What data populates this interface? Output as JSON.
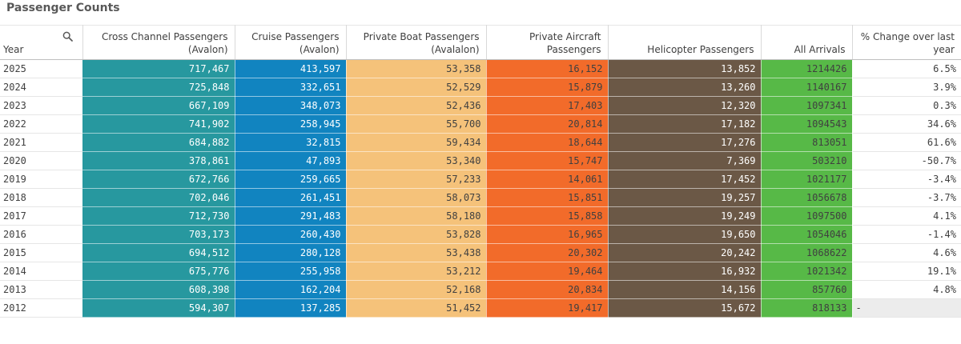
{
  "title": "Passenger Counts",
  "colors": {
    "cross": "#27989f",
    "cruise": "#1184c0",
    "boat": "#f5c27a",
    "air": "#f26b2a",
    "heli": "#6b5846",
    "all": "#57b947"
  },
  "headers": {
    "year": "Year",
    "search_icon": "search-icon",
    "cross_l1": "Cross Channel Passengers",
    "cross_l2": "(Avalon)",
    "cruise_l1": "Cruise Passengers",
    "cruise_l2": "(Avalon)",
    "boat_l1": "Private Boat Passengers",
    "boat_l2": "(Avalalon)",
    "air_l1": "Private Aircraft",
    "air_l2": "Passengers",
    "heli": "Helicopter Passengers",
    "all": "All Arrivals",
    "pct_l1": "% Change over last",
    "pct_l2": "year"
  },
  "rows": [
    {
      "year": "2025",
      "cross": "717,467",
      "cruise": "413,597",
      "boat": "53,358",
      "air": "16,152",
      "heli": "13,852",
      "all": "1214426",
      "pct": "6.5%"
    },
    {
      "year": "2024",
      "cross": "725,848",
      "cruise": "332,651",
      "boat": "52,529",
      "air": "15,879",
      "heli": "13,260",
      "all": "1140167",
      "pct": "3.9%"
    },
    {
      "year": "2023",
      "cross": "667,109",
      "cruise": "348,073",
      "boat": "52,436",
      "air": "17,403",
      "heli": "12,320",
      "all": "1097341",
      "pct": "0.3%"
    },
    {
      "year": "2022",
      "cross": "741,902",
      "cruise": "258,945",
      "boat": "55,700",
      "air": "20,814",
      "heli": "17,182",
      "all": "1094543",
      "pct": "34.6%"
    },
    {
      "year": "2021",
      "cross": "684,882",
      "cruise": "32,815",
      "boat": "59,434",
      "air": "18,644",
      "heli": "17,276",
      "all": "813051",
      "pct": "61.6%"
    },
    {
      "year": "2020",
      "cross": "378,861",
      "cruise": "47,893",
      "boat": "53,340",
      "air": "15,747",
      "heli": "7,369",
      "all": "503210",
      "pct": "-50.7%"
    },
    {
      "year": "2019",
      "cross": "672,766",
      "cruise": "259,665",
      "boat": "57,233",
      "air": "14,061",
      "heli": "17,452",
      "all": "1021177",
      "pct": "-3.4%"
    },
    {
      "year": "2018",
      "cross": "702,046",
      "cruise": "261,451",
      "boat": "58,073",
      "air": "15,851",
      "heli": "19,257",
      "all": "1056678",
      "pct": "-3.7%"
    },
    {
      "year": "2017",
      "cross": "712,730",
      "cruise": "291,483",
      "boat": "58,180",
      "air": "15,858",
      "heli": "19,249",
      "all": "1097500",
      "pct": "4.1%"
    },
    {
      "year": "2016",
      "cross": "703,173",
      "cruise": "260,430",
      "boat": "53,828",
      "air": "16,965",
      "heli": "19,650",
      "all": "1054046",
      "pct": "-1.4%"
    },
    {
      "year": "2015",
      "cross": "694,512",
      "cruise": "280,128",
      "boat": "53,438",
      "air": "20,302",
      "heli": "20,242",
      "all": "1068622",
      "pct": "4.6%"
    },
    {
      "year": "2014",
      "cross": "675,776",
      "cruise": "255,958",
      "boat": "53,212",
      "air": "19,464",
      "heli": "16,932",
      "all": "1021342",
      "pct": "19.1%"
    },
    {
      "year": "2013",
      "cross": "608,398",
      "cruise": "162,204",
      "boat": "52,168",
      "air": "20,834",
      "heli": "14,156",
      "all": "857760",
      "pct": "4.8%"
    },
    {
      "year": "2012",
      "cross": "594,307",
      "cruise": "137,285",
      "boat": "51,452",
      "air": "19,417",
      "heli": "15,672",
      "all": "818133",
      "pct": "-"
    }
  ]
}
